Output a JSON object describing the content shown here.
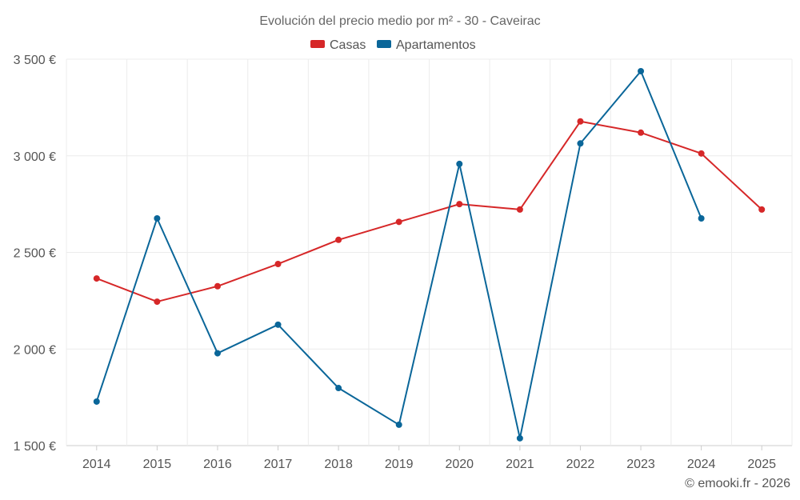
{
  "chart_data": {
    "type": "line",
    "title": "Evolución del precio medio por m² - 30 - Caveirac",
    "categories": [
      "2014",
      "2015",
      "2016",
      "2017",
      "2018",
      "2019",
      "2020",
      "2021",
      "2022",
      "2023",
      "2024",
      "2025"
    ],
    "series": [
      {
        "name": "Casas",
        "color": "#d62728",
        "values": [
          2365,
          2245,
          2325,
          2440,
          2565,
          2658,
          2750,
          2722,
          3178,
          3120,
          3012,
          2722
        ]
      },
      {
        "name": "Apartamentos",
        "color": "#0a6699",
        "values": [
          1728,
          2676,
          1978,
          2126,
          1798,
          1608,
          2958,
          1538,
          3064,
          3438,
          2676,
          null
        ]
      }
    ],
    "ylim": [
      1500,
      3500
    ],
    "yticks": [
      1500,
      2000,
      2500,
      3000,
      3500
    ],
    "ytick_labels": [
      "1 500 €",
      "2 000 €",
      "2 500 €",
      "3 000 €",
      "3 500 €"
    ],
    "legend_position": "top-center",
    "grid": true
  },
  "credit": "© emooki.fr - 2026"
}
